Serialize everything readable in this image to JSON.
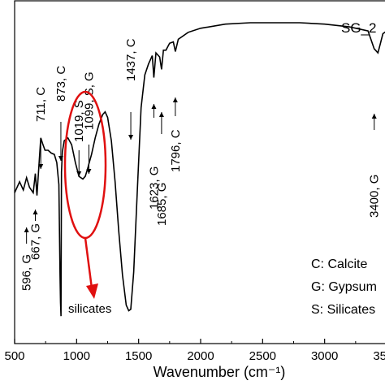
{
  "chart_data": {
    "type": "line",
    "title": "SG_2",
    "xlabel": "Wavenumber (cm⁻¹)",
    "ylabel": "",
    "xlim": [
      500,
      3500
    ],
    "xticks": [
      500,
      1000,
      1500,
      2000,
      2500,
      3000,
      3500
    ],
    "grid": false,
    "series": [
      {
        "values": [
          [
            500,
            110
          ],
          [
            540,
            118
          ],
          [
            570,
            112
          ],
          [
            596,
            121
          ],
          [
            620,
            114
          ],
          [
            650,
            110
          ],
          [
            667,
            124
          ],
          [
            680,
            108
          ],
          [
            700,
            135
          ],
          [
            711,
            150
          ],
          [
            725,
            146
          ],
          [
            745,
            141
          ],
          [
            770,
            141
          ],
          [
            795,
            139
          ],
          [
            820,
            138
          ],
          [
            840,
            132
          ],
          [
            857,
            116
          ],
          [
            866,
            50
          ],
          [
            870,
            30
          ],
          [
            874,
            20
          ],
          [
            878,
            125
          ],
          [
            885,
            140
          ],
          [
            900,
            148
          ],
          [
            930,
            150
          ],
          [
            960,
            145
          ],
          [
            990,
            132
          ],
          [
            1019,
            122
          ],
          [
            1050,
            120
          ],
          [
            1070,
            122
          ],
          [
            1090,
            128
          ],
          [
            1099,
            131
          ],
          [
            1120,
            138
          ],
          [
            1150,
            150
          ],
          [
            1180,
            160
          ],
          [
            1210,
            167
          ],
          [
            1230,
            169
          ],
          [
            1250,
            165
          ],
          [
            1280,
            148
          ],
          [
            1310,
            118
          ],
          [
            1340,
            82
          ],
          [
            1370,
            50
          ],
          [
            1400,
            28
          ],
          [
            1420,
            24
          ],
          [
            1437,
            25
          ],
          [
            1460,
            52
          ],
          [
            1490,
            112
          ],
          [
            1520,
            172
          ],
          [
            1550,
            196
          ],
          [
            1580,
            204
          ],
          [
            1610,
            210
          ],
          [
            1623,
            194
          ],
          [
            1640,
            212
          ],
          [
            1670,
            209
          ],
          [
            1685,
            200
          ],
          [
            1700,
            214
          ],
          [
            1720,
            214
          ],
          [
            1750,
            219
          ],
          [
            1780,
            220
          ],
          [
            1796,
            213
          ],
          [
            1820,
            222
          ],
          [
            1900,
            227
          ],
          [
            2000,
            230
          ],
          [
            2200,
            233
          ],
          [
            2400,
            234
          ],
          [
            2600,
            234
          ],
          [
            2800,
            234
          ],
          [
            3000,
            233
          ],
          [
            3200,
            231
          ],
          [
            3350,
            228
          ],
          [
            3400,
            215
          ],
          [
            3430,
            212
          ],
          [
            3450,
            219
          ],
          [
            3470,
            226
          ],
          [
            3500,
            228
          ]
        ]
      }
    ],
    "annotations": [
      {
        "label": "596, G",
        "x": 596
      },
      {
        "label": "667, G",
        "x": 667
      },
      {
        "label": "711, C",
        "x": 711
      },
      {
        "label": "873, C",
        "x": 873
      },
      {
        "label": "1019, S",
        "x": 1019
      },
      {
        "label": "1099, S, G",
        "x": 1099
      },
      {
        "label": "1437, C",
        "x": 1437
      },
      {
        "label": "1623, G",
        "x": 1623
      },
      {
        "label": "1685, G",
        "x": 1685
      },
      {
        "label": "1796, C",
        "x": 1796
      },
      {
        "label": "3400, G",
        "x": 3400
      }
    ],
    "highlight_label": "silicates",
    "legend": [
      "C: Calcite",
      "G: Gypsum",
      "S: Silicates"
    ],
    "colors": {
      "line": "#000000",
      "highlight": "#e01010"
    }
  }
}
